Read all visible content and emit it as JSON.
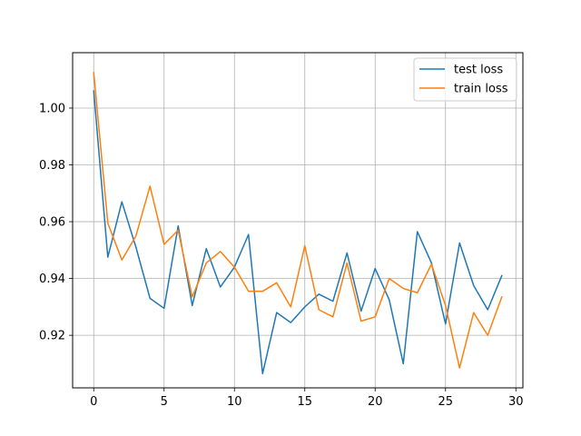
{
  "chart_data": {
    "type": "line",
    "title": "",
    "xlabel": "",
    "ylabel": "",
    "xlim": [
      -1.5,
      30.5
    ],
    "ylim": [
      0.9015,
      1.0195
    ],
    "xticks": [
      0,
      5,
      10,
      15,
      20,
      25,
      30
    ],
    "yticks": [
      0.92,
      0.94,
      0.96,
      0.98,
      1.0
    ],
    "xtick_labels": [
      "0",
      "5",
      "10",
      "15",
      "20",
      "25",
      "30"
    ],
    "ytick_labels": [
      "0.92",
      "0.94",
      "0.96",
      "0.98",
      "1.00"
    ],
    "grid": true,
    "legend_position": "top-right",
    "x": [
      0,
      1,
      2,
      3,
      4,
      5,
      6,
      7,
      8,
      9,
      10,
      11,
      12,
      13,
      14,
      15,
      16,
      17,
      18,
      19,
      20,
      21,
      22,
      23,
      24,
      25,
      26,
      27,
      28,
      29
    ],
    "series": [
      {
        "name": "test loss",
        "color": "#1f77b4",
        "values": [
          1.006,
          0.9475,
          0.967,
          0.951,
          0.933,
          0.9295,
          0.9585,
          0.9305,
          0.9505,
          0.937,
          0.944,
          0.9555,
          0.9065,
          0.928,
          0.9245,
          0.93,
          0.9345,
          0.932,
          0.949,
          0.9285,
          0.9435,
          0.9325,
          0.91,
          0.9565,
          0.9455,
          0.924,
          0.9525,
          0.9375,
          0.929,
          0.941
        ]
      },
      {
        "name": "train loss",
        "color": "#ff7f0e",
        "values": [
          1.0125,
          0.9595,
          0.9465,
          0.955,
          0.9725,
          0.952,
          0.957,
          0.9335,
          0.9455,
          0.9495,
          0.944,
          0.9355,
          0.9355,
          0.9385,
          0.93,
          0.9515,
          0.929,
          0.9265,
          0.9455,
          0.925,
          0.9265,
          0.94,
          0.9365,
          0.935,
          0.945,
          0.9305,
          0.9085,
          0.928,
          0.92,
          0.9335
        ]
      }
    ]
  }
}
